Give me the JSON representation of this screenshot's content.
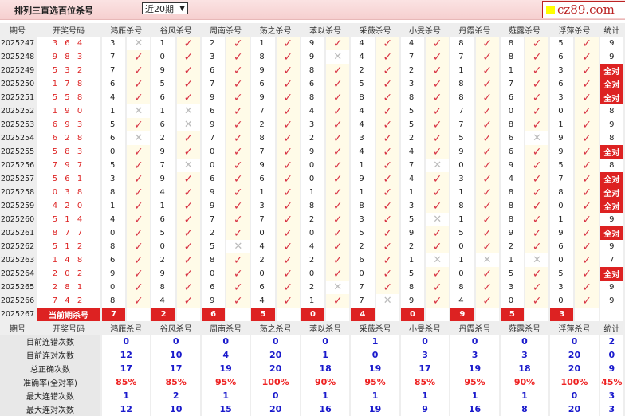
{
  "header": {
    "title": "排列三直选百位杀号",
    "period_select": "近20期",
    "logo": "cz89.com"
  },
  "columns": {
    "issue": "期号",
    "draw": "开奖号码",
    "experts": [
      "鸿雁杀号",
      "谷风杀号",
      "周南杀号",
      "荡之杀号",
      "苯以杀号",
      "采薇杀号",
      "小旻杀号",
      "丹霞杀号",
      "薤露杀号",
      "浮萍杀号"
    ],
    "stat": "统计"
  },
  "rows": [
    {
      "issue": "2025247",
      "draw": "3 6 4",
      "picks": [
        "3x",
        "1",
        "2",
        "1",
        "9",
        "4",
        "4",
        "8",
        "8",
        "5"
      ],
      "stat": "9"
    },
    {
      "issue": "2025248",
      "draw": "9 8 3",
      "picks": [
        "7",
        "0",
        "3",
        "8",
        "9x",
        "4",
        "7",
        "7",
        "8",
        "6"
      ],
      "stat": "9"
    },
    {
      "issue": "2025249",
      "draw": "5 3 2",
      "picks": [
        "7",
        "9",
        "6",
        "9",
        "8",
        "2",
        "2",
        "1",
        "1",
        "3"
      ],
      "stat": "全对"
    },
    {
      "issue": "2025250",
      "draw": "1 7 8",
      "picks": [
        "6",
        "5",
        "7",
        "6",
        "6",
        "5",
        "3",
        "8",
        "7",
        "6"
      ],
      "stat": "全对"
    },
    {
      "issue": "2025251",
      "draw": "5 5 8",
      "picks": [
        "4",
        "6",
        "9",
        "9",
        "8",
        "8",
        "8",
        "8",
        "6",
        "3"
      ],
      "stat": "全对"
    },
    {
      "issue": "2025252",
      "draw": "1 9 0",
      "picks": [
        "1x",
        "1x",
        "6",
        "7",
        "4",
        "4",
        "5",
        "7",
        "0",
        "0"
      ],
      "stat": "8"
    },
    {
      "issue": "2025253",
      "draw": "6 9 3",
      "picks": [
        "5",
        "6x",
        "9",
        "2",
        "3",
        "4",
        "5",
        "7",
        "8",
        "1"
      ],
      "stat": "9"
    },
    {
      "issue": "2025254",
      "draw": "6 2 8",
      "picks": [
        "6x",
        "2",
        "7",
        "8",
        "2",
        "3",
        "2",
        "5",
        "6x",
        "9"
      ],
      "stat": "8"
    },
    {
      "issue": "2025255",
      "draw": "5 8 3",
      "picks": [
        "0",
        "9",
        "0",
        "7",
        "9",
        "4",
        "4",
        "9",
        "6",
        "9"
      ],
      "stat": "全对"
    },
    {
      "issue": "2025256",
      "draw": "7 9 7",
      "picks": [
        "5",
        "7x",
        "0",
        "9",
        "0",
        "1",
        "7x",
        "0",
        "9",
        "5"
      ],
      "stat": "8"
    },
    {
      "issue": "2025257",
      "draw": "5 6 1",
      "picks": [
        "3",
        "9",
        "6",
        "6",
        "0",
        "9",
        "4",
        "3",
        "4",
        "7"
      ],
      "stat": "全对"
    },
    {
      "issue": "2025258",
      "draw": "0 3 8",
      "picks": [
        "8",
        "4",
        "9",
        "1",
        "1",
        "1",
        "1",
        "1",
        "8",
        "8"
      ],
      "stat": "全对"
    },
    {
      "issue": "2025259",
      "draw": "4 2 0",
      "picks": [
        "1",
        "1",
        "9",
        "3",
        "8",
        "8",
        "3",
        "8",
        "8",
        "0"
      ],
      "stat": "全对"
    },
    {
      "issue": "2025260",
      "draw": "5 1 4",
      "picks": [
        "4",
        "6",
        "7",
        "7",
        "2",
        "3",
        "5x",
        "1",
        "8",
        "1"
      ],
      "stat": "9"
    },
    {
      "issue": "2025261",
      "draw": "8 7 7",
      "picks": [
        "0",
        "5",
        "2",
        "0",
        "0",
        "5",
        "9",
        "5",
        "9",
        "9"
      ],
      "stat": "全对"
    },
    {
      "issue": "2025262",
      "draw": "5 1 2",
      "picks": [
        "8",
        "0",
        "5x",
        "4",
        "4",
        "2",
        "2",
        "0",
        "2",
        "6"
      ],
      "stat": "9"
    },
    {
      "issue": "2025263",
      "draw": "1 4 8",
      "picks": [
        "6",
        "2",
        "8",
        "2",
        "2",
        "6",
        "1x",
        "1x",
        "1x",
        "0"
      ],
      "stat": "7"
    },
    {
      "issue": "2025264",
      "draw": "2 0 2",
      "picks": [
        "9",
        "9",
        "0",
        "0",
        "0",
        "0",
        "5",
        "0",
        "5",
        "5"
      ],
      "stat": "全对"
    },
    {
      "issue": "2025265",
      "draw": "2 8 1",
      "picks": [
        "0",
        "8",
        "6",
        "6",
        "2x",
        "7",
        "8",
        "8",
        "3",
        "3"
      ],
      "stat": "9"
    },
    {
      "issue": "2025266",
      "draw": "7 4 2",
      "picks": [
        "8",
        "4",
        "9",
        "4",
        "1",
        "7x",
        "9",
        "4",
        "0",
        "0"
      ],
      "stat": "9"
    }
  ],
  "current": {
    "issue": "2025267",
    "label": "当前期杀号",
    "picks": [
      "7",
      "2",
      "6",
      "5",
      "0",
      "4",
      "0",
      "9",
      "5",
      "3"
    ]
  },
  "stats": [
    {
      "label": "目前连错次数",
      "values": [
        "0",
        "0",
        "0",
        "0",
        "0",
        "1",
        "0",
        "0",
        "0",
        "0",
        "2"
      ],
      "style": "bl"
    },
    {
      "label": "目前连对次数",
      "values": [
        "12",
        "10",
        "4",
        "20",
        "1",
        "0",
        "3",
        "3",
        "3",
        "20",
        "0"
      ],
      "style": "bl"
    },
    {
      "label": "总正确次数",
      "values": [
        "17",
        "17",
        "19",
        "20",
        "18",
        "19",
        "17",
        "19",
        "18",
        "20",
        "9"
      ],
      "style": "bl"
    },
    {
      "label": "准确率(全对率)",
      "values": [
        "85%",
        "85%",
        "95%",
        "100%",
        "90%",
        "95%",
        "85%",
        "95%",
        "90%",
        "100%",
        "45%"
      ],
      "style": "rd"
    },
    {
      "label": "最大连错次数",
      "values": [
        "1",
        "2",
        "1",
        "0",
        "1",
        "1",
        "1",
        "1",
        "1",
        "0",
        "3"
      ],
      "style": "bl"
    },
    {
      "label": "最大连对次数",
      "values": [
        "12",
        "10",
        "15",
        "20",
        "16",
        "19",
        "9",
        "16",
        "8",
        "20",
        "3"
      ],
      "style": "bl"
    }
  ],
  "colors": {
    "accent": "#dd2222",
    "stat_value": "#1a1acc",
    "check": "#d83545"
  }
}
